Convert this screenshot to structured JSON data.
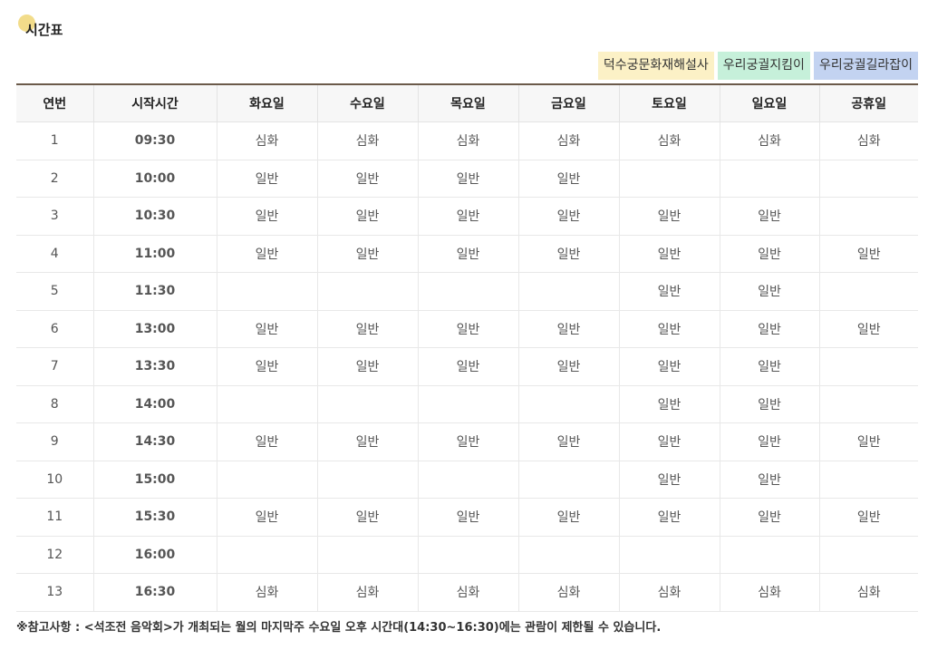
{
  "page": {
    "title": "시간표"
  },
  "legend": [
    {
      "label": "덕수궁문화재해설사",
      "color": "#fcf1c6"
    },
    {
      "label": "우리궁궐지킴이",
      "color": "#c6f0da"
    },
    {
      "label": "우리궁궐길라잡이",
      "color": "#c3d3f1"
    }
  ],
  "table": {
    "headers": [
      "연번",
      "시작시간",
      "화요일",
      "수요일",
      "목요일",
      "금요일",
      "토요일",
      "일요일",
      "공휴일"
    ],
    "rows": [
      {
        "no": "1",
        "time": "09:30",
        "cells": [
          [
            "심화",
            "d"
          ],
          [
            "심화",
            "d"
          ],
          [
            "심화",
            "d"
          ],
          [
            "심화",
            "d"
          ],
          [
            "심화",
            "d"
          ],
          [
            "심화",
            "d"
          ],
          [
            "심화",
            "d"
          ]
        ]
      },
      {
        "no": "2",
        "time": "10:00",
        "cells": [
          [
            "일반",
            "d"
          ],
          [
            "일반",
            "d"
          ],
          [
            "일반",
            "d"
          ],
          [
            "일반",
            "d"
          ],
          [
            "",
            ""
          ],
          [
            "",
            ""
          ],
          [
            "",
            ""
          ]
        ]
      },
      {
        "no": "3",
        "time": "10:30",
        "cells": [
          [
            "일반",
            "d"
          ],
          [
            "일반",
            "d"
          ],
          [
            "일반",
            "d"
          ],
          [
            "일반",
            "d"
          ],
          [
            "일반",
            "d"
          ],
          [
            "일반",
            "d"
          ],
          [
            "",
            ""
          ]
        ]
      },
      {
        "no": "4",
        "time": "11:00",
        "cells": [
          [
            "일반",
            "d"
          ],
          [
            "일반",
            "d"
          ],
          [
            "일반",
            "d"
          ],
          [
            "일반",
            "d"
          ],
          [
            "일반",
            "j"
          ],
          [
            "일반",
            "g"
          ],
          [
            "일반",
            "d"
          ]
        ]
      },
      {
        "no": "5",
        "time": "11:30",
        "cells": [
          [
            "",
            ""
          ],
          [
            "",
            ""
          ],
          [
            "",
            ""
          ],
          [
            "",
            ""
          ],
          [
            "일반",
            "j"
          ],
          [
            "일반",
            "g"
          ],
          [
            "",
            ""
          ]
        ]
      },
      {
        "no": "6",
        "time": "13:00",
        "cells": [
          [
            "일반",
            "d"
          ],
          [
            "일반",
            "d"
          ],
          [
            "일반",
            "d"
          ],
          [
            "일반",
            "d"
          ],
          [
            "일반",
            "d"
          ],
          [
            "일반",
            "d"
          ],
          [
            "일반",
            "d"
          ]
        ]
      },
      {
        "no": "7",
        "time": "13:30",
        "cells": [
          [
            "일반",
            "d"
          ],
          [
            "일반",
            "d"
          ],
          [
            "일반",
            "d"
          ],
          [
            "일반",
            "d"
          ],
          [
            "일반",
            "j"
          ],
          [
            "일반",
            "g"
          ],
          [
            "",
            ""
          ]
        ]
      },
      {
        "no": "8",
        "time": "14:00",
        "cells": [
          [
            "",
            ""
          ],
          [
            "",
            ""
          ],
          [
            "",
            ""
          ],
          [
            "",
            ""
          ],
          [
            "일반",
            "j"
          ],
          [
            "일반",
            "g"
          ],
          [
            "",
            ""
          ]
        ]
      },
      {
        "no": "9",
        "time": "14:30",
        "cells": [
          [
            "일반",
            "d"
          ],
          [
            "일반",
            "d"
          ],
          [
            "일반",
            "d"
          ],
          [
            "일반",
            "d"
          ],
          [
            "일반",
            "d"
          ],
          [
            "일반",
            "d"
          ],
          [
            "일반",
            "d"
          ]
        ]
      },
      {
        "no": "10",
        "time": "15:00",
        "cells": [
          [
            "",
            ""
          ],
          [
            "",
            ""
          ],
          [
            "",
            ""
          ],
          [
            "",
            ""
          ],
          [
            "일반",
            "j"
          ],
          [
            "일반",
            "g"
          ],
          [
            "",
            ""
          ]
        ]
      },
      {
        "no": "11",
        "time": "15:30",
        "cells": [
          [
            "일반",
            "d"
          ],
          [
            "일반",
            "d"
          ],
          [
            "일반",
            "d"
          ],
          [
            "일반",
            "d"
          ],
          [
            "일반",
            "j"
          ],
          [
            "일반",
            "g"
          ],
          [
            "일반",
            "d"
          ]
        ]
      },
      {
        "no": "12",
        "time": "16:00",
        "cells": [
          [
            "",
            ""
          ],
          [
            "",
            ""
          ],
          [
            "",
            ""
          ],
          [
            "",
            ""
          ],
          [
            "",
            ""
          ],
          [
            "",
            ""
          ],
          [
            "",
            ""
          ]
        ]
      },
      {
        "no": "13",
        "time": "16:30",
        "cells": [
          [
            "심화",
            "d"
          ],
          [
            "심화",
            "d"
          ],
          [
            "심화",
            "d"
          ],
          [
            "심화",
            "d"
          ],
          [
            "심화",
            "d"
          ],
          [
            "심화",
            "d"
          ],
          [
            "심화",
            "d"
          ]
        ]
      }
    ]
  },
  "note": "※참고사항 : <석조전 음악회>가 개최되는 월의 마지막주 수요일 오후 시간대(14:30~16:30)에는 관람이 제한될 수 있습니다."
}
